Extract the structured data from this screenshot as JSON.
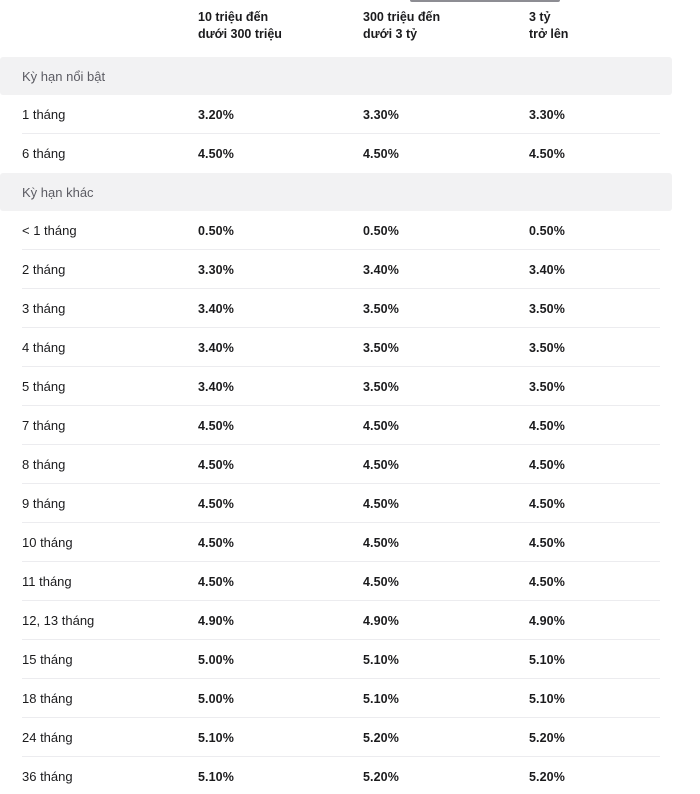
{
  "colors": {
    "page_background": "#ffffff",
    "section_band_bg": "#f2f2f3",
    "row_divider": "#ececef",
    "text_primary": "#1b1b1d",
    "text_secondary": "#5c5c63"
  },
  "table": {
    "column_headers": [
      {
        "line1": "10 triệu đến",
        "line2": "dưới 300 triệu"
      },
      {
        "line1": "300 triệu đến",
        "line2": "dưới 3 tỷ"
      },
      {
        "line1": "3 tỷ",
        "line2": "trở lên"
      }
    ],
    "sections": [
      {
        "label": "Kỳ hạn nổi bật",
        "rows": [
          {
            "term": "1 tháng",
            "rates": [
              "3.20%",
              "3.30%",
              "3.30%"
            ]
          },
          {
            "term": "6 tháng",
            "rates": [
              "4.50%",
              "4.50%",
              "4.50%"
            ]
          }
        ]
      },
      {
        "label": "Kỳ hạn khác",
        "rows": [
          {
            "term": "< 1 tháng",
            "rates": [
              "0.50%",
              "0.50%",
              "0.50%"
            ]
          },
          {
            "term": "2 tháng",
            "rates": [
              "3.30%",
              "3.40%",
              "3.40%"
            ]
          },
          {
            "term": "3 tháng",
            "rates": [
              "3.40%",
              "3.50%",
              "3.50%"
            ]
          },
          {
            "term": "4 tháng",
            "rates": [
              "3.40%",
              "3.50%",
              "3.50%"
            ]
          },
          {
            "term": "5 tháng",
            "rates": [
              "3.40%",
              "3.50%",
              "3.50%"
            ]
          },
          {
            "term": "7 tháng",
            "rates": [
              "4.50%",
              "4.50%",
              "4.50%"
            ]
          },
          {
            "term": "8 tháng",
            "rates": [
              "4.50%",
              "4.50%",
              "4.50%"
            ]
          },
          {
            "term": "9 tháng",
            "rates": [
              "4.50%",
              "4.50%",
              "4.50%"
            ]
          },
          {
            "term": "10 tháng",
            "rates": [
              "4.50%",
              "4.50%",
              "4.50%"
            ]
          },
          {
            "term": "11 tháng",
            "rates": [
              "4.50%",
              "4.50%",
              "4.50%"
            ]
          },
          {
            "term": "12, 13 tháng",
            "rates": [
              "4.90%",
              "4.90%",
              "4.90%"
            ]
          },
          {
            "term": "15 tháng",
            "rates": [
              "5.00%",
              "5.10%",
              "5.10%"
            ]
          },
          {
            "term": "18 tháng",
            "rates": [
              "5.00%",
              "5.10%",
              "5.10%"
            ]
          },
          {
            "term": "24 tháng",
            "rates": [
              "5.10%",
              "5.20%",
              "5.20%"
            ]
          },
          {
            "term": "36 tháng",
            "rates": [
              "5.10%",
              "5.20%",
              "5.20%"
            ]
          }
        ]
      }
    ]
  }
}
